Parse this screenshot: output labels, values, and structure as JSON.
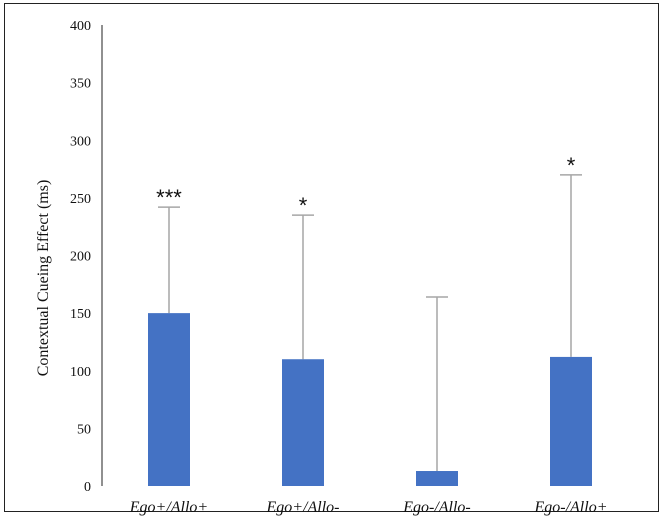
{
  "chart_data": {
    "type": "bar",
    "title": "",
    "xlabel": "",
    "ylabel": "Contextual Cueing Effect (ms)",
    "ylim": [
      0,
      400
    ],
    "yticks": [
      0,
      50,
      100,
      150,
      200,
      250,
      300,
      350,
      400
    ],
    "ytick_labels": [
      "0",
      "50",
      "100",
      "150",
      "200",
      "250",
      "300",
      "350",
      "400"
    ],
    "grid": false,
    "legend": "none",
    "categories": [
      "Ego+/Allo+",
      "Ego+/Allo-",
      "Ego-/Allo-",
      "Ego-/Allo+"
    ],
    "values": [
      150,
      110,
      13,
      112
    ],
    "error_upper": [
      242,
      235,
      164,
      270
    ],
    "significance": [
      "***",
      "*",
      "",
      "*"
    ],
    "bar_color": "#4472C4",
    "error_color": "#A6A6A6"
  }
}
